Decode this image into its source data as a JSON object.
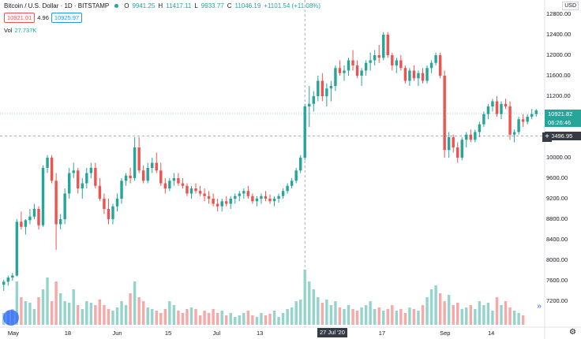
{
  "symbol": {
    "title": "Bitcoin / U.S. Dollar · 1D · BITSTAMP",
    "open_label": "O",
    "open": "9941.25",
    "high_label": "H",
    "high": "11417.11",
    "low_label": "L",
    "low": "9933.77",
    "close_label": "C",
    "close": "11046.19",
    "change": "+1101.54 (+11.08%)"
  },
  "trade": {
    "sell": "10921.01",
    "spread": "4.96",
    "buy": "10925.97"
  },
  "volume": {
    "label": "Vol",
    "value": "27.737K"
  },
  "currency_button": "USD",
  "price_axis": [
    "12800.00",
    "12400.00",
    "12000.00",
    "11600.00",
    "11200.00",
    "10800.00",
    "10400.00",
    "10000.00",
    "9600.00",
    "9200.00",
    "8800.00",
    "8400.00",
    "8000.00",
    "7600.00",
    "7200.00"
  ],
  "time_axis": [
    "May",
    "18",
    "Jun",
    "15",
    "Jul",
    "13",
    "Aug",
    "17",
    "Sep",
    "14"
  ],
  "last_price_tag": "10921.82",
  "countdown_tag": "06:26:46",
  "crosshair_price_tag": "10496.95",
  "crosshair_date_tag": "27 Jul '20",
  "colors": {
    "up": "#26a69a",
    "down": "#ef5350",
    "up_vol": "#94d4cd",
    "down_vol": "#f7a9a7",
    "grid": "#f0f3fa"
  },
  "icons": {
    "settings": "gear-icon",
    "logo": "tradingview-logo-icon",
    "scroll": "double-chevron-right-icon",
    "crosshair": "plus-icon"
  },
  "chart_data": {
    "type": "candlestick",
    "ohlc": [
      [
        7520,
        7620,
        7400,
        7580
      ],
      [
        7580,
        7700,
        7500,
        7660
      ],
      [
        7660,
        7750,
        7600,
        7700
      ],
      [
        7700,
        8800,
        7680,
        8750
      ],
      [
        8750,
        8950,
        8600,
        8650
      ],
      [
        8650,
        8800,
        8500,
        8780
      ],
      [
        8780,
        9000,
        8700,
        8850
      ],
      [
        8850,
        9100,
        8800,
        9000
      ],
      [
        9000,
        9050,
        8600,
        8680
      ],
      [
        8680,
        9850,
        8650,
        9800
      ],
      [
        9800,
        10050,
        9700,
        10000
      ],
      [
        10000,
        10050,
        9500,
        9550
      ],
      [
        9550,
        9700,
        8200,
        8700
      ],
      [
        8700,
        8900,
        8600,
        8800
      ],
      [
        8800,
        9400,
        8700,
        9300
      ],
      [
        9300,
        9800,
        9200,
        9700
      ],
      [
        9700,
        9900,
        9600,
        9750
      ],
      [
        9750,
        9800,
        9300,
        9400
      ],
      [
        9400,
        9600,
        9200,
        9500
      ],
      [
        9500,
        9800,
        9400,
        9700
      ],
      [
        9700,
        9900,
        9600,
        9800
      ],
      [
        9800,
        9900,
        9400,
        9450
      ],
      [
        9450,
        9600,
        9150,
        9200
      ],
      [
        9200,
        9300,
        8900,
        9000
      ],
      [
        9000,
        9200,
        8700,
        8800
      ],
      [
        8800,
        9100,
        8700,
        9050
      ],
      [
        9050,
        9300,
        8950,
        9200
      ],
      [
        9200,
        9600,
        9100,
        9550
      ],
      [
        9550,
        9700,
        9450,
        9650
      ],
      [
        9650,
        9800,
        9500,
        9600
      ],
      [
        9600,
        10400,
        9550,
        10200
      ],
      [
        10200,
        10400,
        9700,
        9750
      ],
      [
        9750,
        9850,
        9500,
        9550
      ],
      [
        9550,
        9900,
        9500,
        9800
      ],
      [
        9800,
        10000,
        9700,
        9900
      ],
      [
        9900,
        10100,
        9700,
        9750
      ],
      [
        9750,
        9900,
        9450,
        9500
      ],
      [
        9500,
        9600,
        9300,
        9400
      ],
      [
        9400,
        9600,
        9350,
        9550
      ],
      [
        9550,
        9700,
        9450,
        9600
      ],
      [
        9600,
        9700,
        9450,
        9500
      ],
      [
        9500,
        9600,
        9400,
        9450
      ],
      [
        9450,
        9500,
        9250,
        9300
      ],
      [
        9300,
        9450,
        9200,
        9400
      ],
      [
        9400,
        9500,
        9300,
        9350
      ],
      [
        9350,
        9450,
        9250,
        9300
      ],
      [
        9300,
        9400,
        9150,
        9250
      ],
      [
        9250,
        9350,
        9100,
        9200
      ],
      [
        9200,
        9300,
        9050,
        9100
      ],
      [
        9100,
        9200,
        8950,
        9050
      ],
      [
        9050,
        9200,
        8950,
        9150
      ],
      [
        9150,
        9250,
        9050,
        9100
      ],
      [
        9100,
        9250,
        9000,
        9200
      ],
      [
        9200,
        9300,
        9100,
        9250
      ],
      [
        9250,
        9350,
        9150,
        9300
      ],
      [
        9300,
        9400,
        9200,
        9350
      ],
      [
        9350,
        9450,
        9200,
        9250
      ],
      [
        9250,
        9300,
        9100,
        9150
      ],
      [
        9150,
        9250,
        9050,
        9200
      ],
      [
        9200,
        9300,
        9100,
        9250
      ],
      [
        9250,
        9350,
        9150,
        9200
      ],
      [
        9200,
        9280,
        9100,
        9150
      ],
      [
        9150,
        9250,
        9050,
        9200
      ],
      [
        9200,
        9300,
        9120,
        9250
      ],
      [
        9250,
        9400,
        9200,
        9350
      ],
      [
        9350,
        9500,
        9300,
        9450
      ],
      [
        9450,
        9600,
        9400,
        9550
      ],
      [
        9550,
        9800,
        9500,
        9750
      ],
      [
        9750,
        10050,
        9700,
        10000
      ],
      [
        10000,
        11050,
        9950,
        11000
      ],
      [
        11000,
        11400,
        10600,
        11050
      ],
      [
        11050,
        11300,
        10900,
        11200
      ],
      [
        11200,
        11600,
        11100,
        11500
      ],
      [
        11500,
        11650,
        11100,
        11200
      ],
      [
        11200,
        11450,
        11000,
        11350
      ],
      [
        11350,
        11500,
        11100,
        11400
      ],
      [
        11400,
        11800,
        11300,
        11750
      ],
      [
        11750,
        11900,
        11600,
        11650
      ],
      [
        11650,
        11800,
        11500,
        11700
      ],
      [
        11700,
        11950,
        11600,
        11900
      ],
      [
        11900,
        12100,
        11700,
        11800
      ],
      [
        11800,
        11900,
        11550,
        11600
      ],
      [
        11600,
        11750,
        11400,
        11700
      ],
      [
        11700,
        11900,
        11600,
        11850
      ],
      [
        11850,
        12050,
        11700,
        11900
      ],
      [
        11900,
        12100,
        11800,
        12000
      ],
      [
        12000,
        12200,
        11850,
        11950
      ],
      [
        11950,
        12450,
        11900,
        12400
      ],
      [
        12400,
        12450,
        11950,
        12000
      ],
      [
        12000,
        12050,
        11700,
        11800
      ],
      [
        11800,
        11950,
        11650,
        11900
      ],
      [
        11900,
        12000,
        11700,
        11750
      ],
      [
        11750,
        11800,
        11450,
        11500
      ],
      [
        11500,
        11750,
        11400,
        11700
      ],
      [
        11700,
        11800,
        11500,
        11550
      ],
      [
        11550,
        11700,
        11400,
        11650
      ],
      [
        11650,
        11750,
        11450,
        11500
      ],
      [
        11500,
        11800,
        11450,
        11750
      ],
      [
        11750,
        11900,
        11650,
        11850
      ],
      [
        11850,
        12050,
        11800,
        12000
      ],
      [
        12000,
        12050,
        11550,
        11600
      ],
      [
        11600,
        11700,
        10000,
        10150
      ],
      [
        10150,
        10500,
        10000,
        10400
      ],
      [
        10400,
        10450,
        10100,
        10200
      ],
      [
        10200,
        10300,
        9900,
        10000
      ],
      [
        10000,
        10400,
        9950,
        10350
      ],
      [
        10350,
        10500,
        10200,
        10450
      ],
      [
        10450,
        10550,
        10300,
        10350
      ],
      [
        10350,
        10550,
        10300,
        10500
      ],
      [
        10500,
        10700,
        10400,
        10650
      ],
      [
        10650,
        10900,
        10600,
        10850
      ],
      [
        10850,
        11050,
        10750,
        11000
      ],
      [
        11000,
        11150,
        10900,
        11100
      ],
      [
        11100,
        11200,
        10800,
        10850
      ],
      [
        10850,
        11100,
        10750,
        11050
      ],
      [
        11050,
        11150,
        10950,
        11000
      ],
      [
        11000,
        11100,
        10350,
        10450
      ],
      [
        10450,
        10550,
        10300,
        10500
      ],
      [
        10500,
        10800,
        10450,
        10750
      ],
      [
        10750,
        10850,
        10600,
        10700
      ],
      [
        10700,
        10850,
        10650,
        10800
      ],
      [
        10800,
        10950,
        10750,
        10850
      ],
      [
        10850,
        10950,
        10800,
        10921
      ]
    ],
    "volume_pct": [
      0.15,
      0.18,
      0.2,
      0.55,
      0.35,
      0.3,
      0.28,
      0.2,
      0.35,
      0.45,
      0.6,
      0.3,
      0.55,
      0.4,
      0.3,
      0.28,
      0.45,
      0.25,
      0.2,
      0.3,
      0.28,
      0.25,
      0.32,
      0.25,
      0.2,
      0.18,
      0.22,
      0.3,
      0.25,
      0.4,
      0.55,
      0.35,
      0.3,
      0.22,
      0.2,
      0.18,
      0.15,
      0.2,
      0.3,
      0.25,
      0.18,
      0.15,
      0.2,
      0.22,
      0.2,
      0.12,
      0.18,
      0.15,
      0.2,
      0.15,
      0.18,
      0.12,
      0.15,
      0.1,
      0.12,
      0.15,
      0.18,
      0.12,
      0.1,
      0.15,
      0.12,
      0.14,
      0.18,
      0.1,
      0.15,
      0.2,
      0.22,
      0.3,
      0.32,
      0.7,
      0.55,
      0.45,
      0.35,
      0.28,
      0.32,
      0.25,
      0.3,
      0.22,
      0.2,
      0.25,
      0.2,
      0.18,
      0.22,
      0.25,
      0.3,
      0.2,
      0.22,
      0.18,
      0.2,
      0.25,
      0.18,
      0.2,
      0.15,
      0.22,
      0.2,
      0.18,
      0.25,
      0.35,
      0.45,
      0.5,
      0.4,
      0.3,
      0.38,
      0.25,
      0.28,
      0.2,
      0.22,
      0.25,
      0.2,
      0.3,
      0.25,
      0.28,
      0.18,
      0.35,
      0.25,
      0.3,
      0.22,
      0.18,
      0.15,
      0.12
    ],
    "xlabel": "",
    "ylabel": "",
    "ylim": [
      7000,
      12800
    ],
    "grid": false,
    "legend": "top-left"
  }
}
